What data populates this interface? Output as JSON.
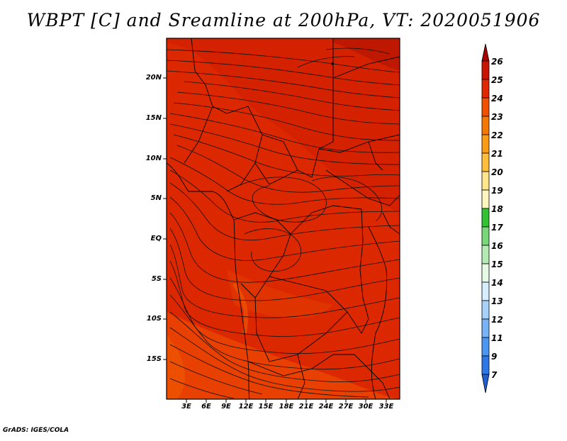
{
  "title": "WBPT [C] and Sreamline at 200hPa, VT: 2020051906",
  "credit": "GrADS: IGES/COLA",
  "map": {
    "lat_labels": [
      "20N",
      "15N",
      "10N",
      "5N",
      "EQ",
      "5S",
      "10S",
      "15S"
    ],
    "lon_labels": [
      "3E",
      "6E",
      "9E",
      "12E",
      "15E",
      "18E",
      "21E",
      "24E",
      "27E",
      "30E",
      "33E"
    ]
  },
  "colorbar": {
    "labels": [
      "26",
      "25",
      "24",
      "23",
      "22",
      "21",
      "20",
      "19",
      "18",
      "17",
      "16",
      "15",
      "14",
      "13",
      "12",
      "11",
      "9",
      "7"
    ],
    "colors": [
      "#a50000",
      "#c81400",
      "#e12800",
      "#f05000",
      "#f57800",
      "#fa9b14",
      "#ffbe3c",
      "#ffe68c",
      "#fff5be",
      "#34c234",
      "#78d778",
      "#b4ebb4",
      "#e6fae6",
      "#d6eeff",
      "#a9d2fa",
      "#78b4f5",
      "#4b96f0",
      "#2d78e6",
      "#1e5fd2"
    ]
  },
  "field_colors": {
    "main": "#dc2800",
    "dark": "#c81e00",
    "light": "#eb4600"
  }
}
